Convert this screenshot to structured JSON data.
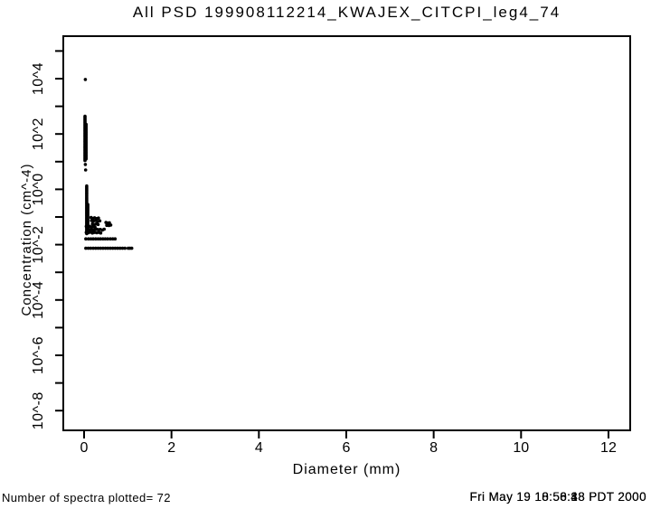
{
  "title": "All PSD 199908112214_KWAJEX_CITCPI_leg4_74",
  "footer": {
    "left": "Number of spectra plotted= 72",
    "right_layers": [
      "Fri May 19 10:50:18 PDT 2000",
      "Fri May 19 18:58:48 PDT 2000",
      "Fri May 19 18:56:88 PDT 2000"
    ]
  },
  "colors": {
    "foreground": "#000000",
    "background": "#ffffff"
  },
  "chart_data": {
    "type": "scatter",
    "title": "All PSD 199908112214_KWAJEX_CITCPI_leg4_74",
    "xlabel": "Diameter (mm)",
    "ylabel": "Concentration (cm^-4)",
    "grid": false,
    "legend": "none",
    "x_ticks": [
      0,
      2,
      4,
      6,
      8,
      10,
      12
    ],
    "x_tick_labels": [
      "0",
      "2",
      "4",
      "6",
      "8",
      "10",
      "12"
    ],
    "xlim": [
      -0.48,
      12.5
    ],
    "y_scale": "log10",
    "y_tick_exponents": [
      5,
      4,
      3,
      2,
      1,
      0,
      -1,
      -2,
      -3,
      -4,
      -5,
      -6,
      -7,
      -8
    ],
    "y_labeled_exponents": [
      4,
      2,
      0,
      -2,
      -4,
      -6,
      -8
    ],
    "y_tick_labels": [
      "10^4",
      "10^2",
      "10^0",
      "10^-2",
      "10^-4",
      "10^-6",
      "10^-8"
    ],
    "ylim_exponents": [
      -8.7,
      5.55
    ],
    "marker": {
      "shape": "dot",
      "radius_px": 1.8,
      "color": "#000000"
    },
    "series": [
      {
        "name": "isolated-top-point",
        "points": [
          [
            0.03,
            3.97
          ]
        ]
      },
      {
        "name": "vertical-run-small-diameter",
        "runs": [
          {
            "d": 0.02,
            "log_max": 2.64,
            "log_min": 1.04,
            "n": 42
          },
          {
            "d": 0.045,
            "log_max": 2.35,
            "log_min": 1.1,
            "n": 26
          }
        ],
        "points": [
          [
            0.03,
            0.9
          ],
          [
            0.035,
            0.7
          ]
        ]
      },
      {
        "name": "vertical-run-mid-diameter",
        "runs": [
          {
            "d": 0.06,
            "log_max": 0.12,
            "log_min": -1.6,
            "n": 44
          },
          {
            "d": 0.085,
            "log_max": -0.55,
            "log_min": -1.55,
            "n": 22
          }
        ],
        "points": []
      },
      {
        "name": "scatter-cluster",
        "points": [
          [
            0.16,
            -1.02
          ],
          [
            0.2,
            -1.05
          ],
          [
            0.24,
            -1.03
          ],
          [
            0.29,
            -1.06
          ],
          [
            0.33,
            -1.04
          ],
          [
            0.17,
            -1.13
          ],
          [
            0.21,
            -1.15
          ],
          [
            0.26,
            -1.13
          ],
          [
            0.31,
            -1.16
          ],
          [
            0.36,
            -1.14
          ],
          [
            0.19,
            -1.25
          ],
          [
            0.23,
            -1.27
          ],
          [
            0.28,
            -1.25
          ],
          [
            0.32,
            -1.27
          ],
          [
            0.5,
            -1.2
          ],
          [
            0.54,
            -1.22
          ],
          [
            0.58,
            -1.21
          ],
          [
            0.52,
            -1.3
          ],
          [
            0.57,
            -1.31
          ],
          [
            0.61,
            -1.29
          ],
          [
            0.05,
            -1.34
          ],
          [
            0.09,
            -1.36
          ],
          [
            0.13,
            -1.34
          ],
          [
            0.17,
            -1.37
          ],
          [
            0.21,
            -1.35
          ],
          [
            0.25,
            -1.37
          ],
          [
            0.08,
            -1.45
          ],
          [
            0.12,
            -1.47
          ],
          [
            0.16,
            -1.44
          ],
          [
            0.2,
            -1.47
          ],
          [
            0.25,
            -1.45
          ],
          [
            0.29,
            -1.44
          ],
          [
            0.33,
            -1.46
          ],
          [
            0.37,
            -1.45
          ],
          [
            0.42,
            -1.47
          ],
          [
            0.46,
            -1.44
          ],
          [
            0.05,
            -1.56
          ],
          [
            0.1,
            -1.57
          ],
          [
            0.15,
            -1.55
          ],
          [
            0.19,
            -1.58
          ],
          [
            0.24,
            -1.56
          ],
          [
            0.29,
            -1.57
          ],
          [
            0.34,
            -1.56
          ],
          [
            0.38,
            -1.58
          ]
        ]
      },
      {
        "name": "row-upper",
        "log": -1.79,
        "d_values": [
          0.04,
          0.1,
          0.155,
          0.21,
          0.265,
          0.32,
          0.375,
          0.43,
          0.485,
          0.54,
          0.6,
          0.655,
          0.71
        ]
      },
      {
        "name": "row-lower",
        "log": -2.13,
        "d_values": [
          0.04,
          0.096,
          0.152,
          0.208,
          0.264,
          0.32,
          0.376,
          0.432,
          0.488,
          0.544,
          0.6,
          0.656,
          0.712,
          0.768,
          0.824,
          0.88,
          0.936,
          1.01,
          1.05,
          1.09
        ]
      }
    ]
  }
}
